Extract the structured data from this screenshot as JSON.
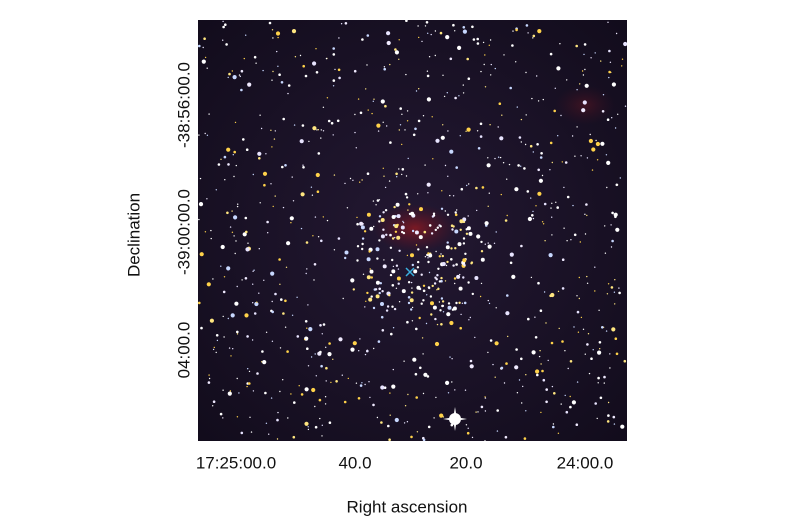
{
  "axes": {
    "x_label": "Right ascension",
    "y_label": "Declination",
    "x_ticks": [
      "17:25:00.0",
      "40.0",
      "20.0",
      "24:00.0"
    ],
    "y_ticks": [
      "-38:56:00.0",
      "-39:00:00.0",
      "04:00.0"
    ]
  }
}
